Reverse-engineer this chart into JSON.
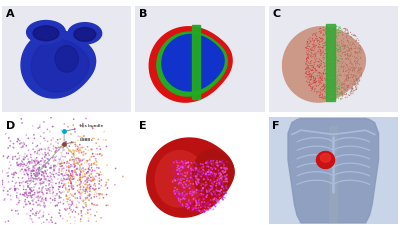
{
  "panel_labels": [
    "A",
    "B",
    "C",
    "D",
    "E",
    "F"
  ],
  "label_fontsize": 8,
  "label_color": "black",
  "label_weight": "bold",
  "bg_color": "#ffffff",
  "panel_A": {
    "bg": "#e8e8f0",
    "body_color": "#2233bb",
    "dark_color": "#111177",
    "mid_color": "#1a28aa"
  },
  "panel_B": {
    "bg": "#e8e8f0",
    "red": "#dd1111",
    "green": "#22aa22",
    "blue": "#1133cc"
  },
  "panel_C": {
    "bg": "#e8e8f0",
    "base": "#cc9988",
    "red_dot": "#cc3333",
    "green_dot": "#44aa33",
    "green_strip": "#33aa33"
  },
  "panel_D": {
    "bg": "#ffffff",
    "colors_left": [
      "#cc88cc",
      "#aa44aa",
      "#ddaadd",
      "#bb66bb",
      "#9944aa"
    ],
    "colors_right": [
      "#ffcc88",
      "#ffaa44",
      "#dd8844",
      "#cc66cc",
      "#aa44aa"
    ],
    "his_color": "#00aacc",
    "lbbb_color": "#884444",
    "annotation_his": "His bundle",
    "annotation_lbbb": "LBBB"
  },
  "panel_E": {
    "bg": "#ffffff",
    "outer": "#bb1111",
    "inner": "#cc2222",
    "scatter_colors": [
      "#cc44cc",
      "#aa22aa",
      "#ee66ee",
      "#ff44ff",
      "#dd00dd"
    ]
  },
  "panel_F": {
    "bg": "#c8d4e8",
    "torso": "#8899bb",
    "rib": "#aabbdd",
    "heart": "#cc1111",
    "spine": "#9aaabb"
  }
}
